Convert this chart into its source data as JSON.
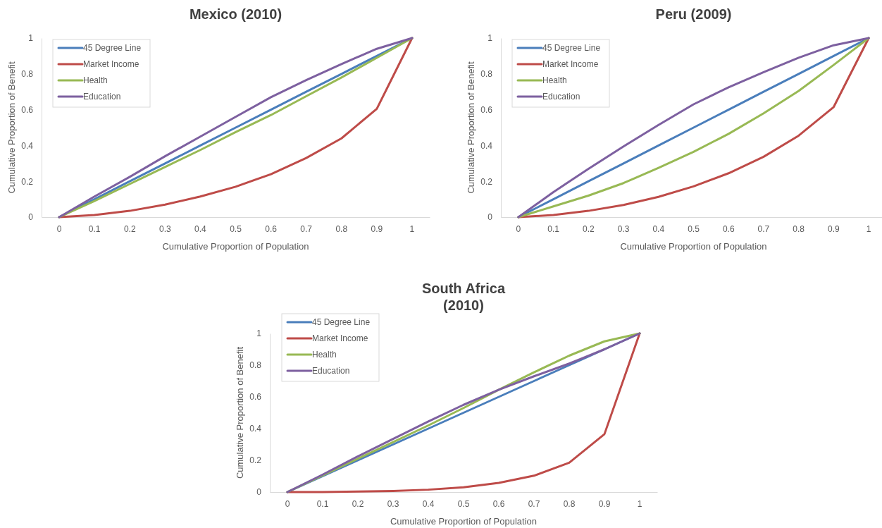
{
  "chart_data": [
    {
      "type": "line",
      "title": "Mexico (2010)",
      "xlabel": "Cumulative Proportion of Population",
      "ylabel": "Cumulative Proportion of Benefit",
      "categories": [
        "0",
        "0.1",
        "0.2",
        "0.3",
        "0.4",
        "0.5",
        "0.6",
        "0.7",
        "0.8",
        "0.9",
        "1"
      ],
      "ylim": [
        0,
        1
      ],
      "yticks": [
        0,
        0.2,
        0.4,
        0.6,
        0.8,
        1
      ],
      "grid": false,
      "legend": "top left",
      "marker": "none",
      "line_style": "solid",
      "series": [
        {
          "name": "45 Degree Line",
          "color": "#4a7ebb",
          "values": [
            0,
            0.1,
            0.2,
            0.3,
            0.4,
            0.5,
            0.6,
            0.7,
            0.8,
            0.9,
            1
          ]
        },
        {
          "name": "Market Income",
          "color": "#be4b48",
          "values": [
            0,
            0.012,
            0.035,
            0.07,
            0.115,
            0.17,
            0.24,
            0.33,
            0.44,
            0.605,
            1
          ]
        },
        {
          "name": "Health",
          "color": "#98b954",
          "values": [
            0,
            0.09,
            0.185,
            0.28,
            0.375,
            0.475,
            0.57,
            0.675,
            0.78,
            0.89,
            1
          ]
        },
        {
          "name": "Education",
          "color": "#7d60a0",
          "values": [
            0,
            0.115,
            0.225,
            0.34,
            0.45,
            0.56,
            0.67,
            0.765,
            0.855,
            0.94,
            1
          ]
        }
      ]
    },
    {
      "type": "line",
      "title": "Peru (2009)",
      "xlabel": "Cumulative Proportion of Population",
      "ylabel": "Cumulative Proportion of Benefit",
      "categories": [
        "0",
        "0.1",
        "0.2",
        "0.3",
        "0.4",
        "0.5",
        "0.6",
        "0.7",
        "0.8",
        "0.9",
        "1"
      ],
      "ylim": [
        0,
        1
      ],
      "yticks": [
        0,
        0.2,
        0.4,
        0.6,
        0.8,
        1
      ],
      "grid": false,
      "legend": "top left",
      "marker": "none",
      "line_style": "solid",
      "series": [
        {
          "name": "45 Degree Line",
          "color": "#4a7ebb",
          "values": [
            0,
            0.1,
            0.2,
            0.3,
            0.4,
            0.5,
            0.6,
            0.7,
            0.8,
            0.9,
            1
          ]
        },
        {
          "name": "Market Income",
          "color": "#be4b48",
          "values": [
            0,
            0.012,
            0.035,
            0.068,
            0.113,
            0.172,
            0.245,
            0.337,
            0.455,
            0.615,
            1
          ]
        },
        {
          "name": "Health",
          "color": "#98b954",
          "values": [
            0,
            0.06,
            0.12,
            0.19,
            0.275,
            0.365,
            0.465,
            0.58,
            0.705,
            0.85,
            1
          ]
        },
        {
          "name": "Education",
          "color": "#7d60a0",
          "values": [
            0,
            0.14,
            0.27,
            0.395,
            0.515,
            0.63,
            0.725,
            0.81,
            0.89,
            0.96,
            1
          ]
        }
      ]
    },
    {
      "type": "line",
      "title": "South Africa (2010)",
      "xlabel": "Cumulative Proportion of Population",
      "ylabel": "Cumulative Proportion of Benefit",
      "categories": [
        "0",
        "0.1",
        "0.2",
        "0.3",
        "0.4",
        "0.5",
        "0.6",
        "0.7",
        "0.8",
        "0.9",
        "1"
      ],
      "ylim": [
        0,
        1
      ],
      "yticks": [
        0,
        0.2,
        0.4,
        0.6,
        0.8,
        1
      ],
      "grid": false,
      "legend": "top left",
      "marker": "none",
      "line_style": "solid",
      "series": [
        {
          "name": "45 Degree Line",
          "color": "#4a7ebb",
          "values": [
            0,
            0.1,
            0.2,
            0.3,
            0.4,
            0.5,
            0.6,
            0.7,
            0.8,
            0.9,
            1
          ]
        },
        {
          "name": "Market Income",
          "color": "#be4b48",
          "values": [
            0,
            0,
            0.003,
            0.007,
            0.015,
            0.03,
            0.058,
            0.103,
            0.185,
            0.365,
            1
          ]
        },
        {
          "name": "Health",
          "color": "#98b954",
          "values": [
            0,
            0.105,
            0.21,
            0.315,
            0.42,
            0.53,
            0.645,
            0.755,
            0.86,
            0.95,
            1
          ]
        },
        {
          "name": "Education",
          "color": "#7d60a0",
          "values": [
            0,
            0.11,
            0.225,
            0.335,
            0.445,
            0.55,
            0.645,
            0.73,
            0.81,
            0.9,
            1
          ]
        }
      ]
    }
  ]
}
